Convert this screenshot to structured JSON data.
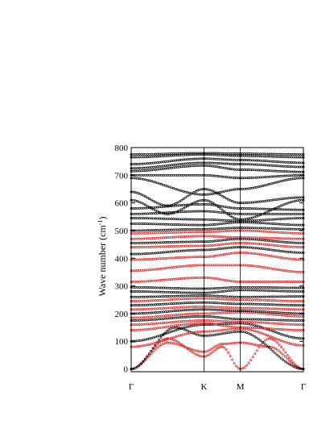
{
  "chart_data": {
    "type": "line",
    "title": "",
    "xlabel": "",
    "ylabel": "Wave number (cm",
    "ylabel_sup": "-1",
    "ylabel_close": ")",
    "ylim": [
      -10,
      800
    ],
    "yticks": [
      0,
      100,
      200,
      300,
      400,
      500,
      600,
      700,
      800
    ],
    "x_ticks": [
      {
        "label": "Γ",
        "pos": 0
      },
      {
        "label": "K",
        "pos": 1
      },
      {
        "label": "M",
        "pos": 1.5
      },
      {
        "label": "Γ",
        "pos": 2.366
      }
    ],
    "grid": false,
    "marker": "small-open-circles",
    "colors": {
      "black_branches": "#000000",
      "red_branches": "#e41a1c"
    },
    "series": [
      {
        "color": "red",
        "points": [
          [
            0,
            0
          ],
          [
            0.5,
            110
          ],
          [
            1,
            45
          ],
          [
            1.25,
            80
          ],
          [
            1.5,
            0
          ],
          [
            1.9,
            110
          ],
          [
            2.366,
            0
          ]
        ]
      },
      {
        "color": "red",
        "points": [
          [
            0,
            0
          ],
          [
            0.5,
            95
          ],
          [
            1,
            62
          ],
          [
            1.25,
            90
          ],
          [
            1.5,
            95
          ],
          [
            1.9,
            80
          ],
          [
            2.366,
            0
          ]
        ]
      },
      {
        "color": "black",
        "points": [
          [
            0,
            0
          ],
          [
            0.6,
            150
          ],
          [
            1,
            120
          ],
          [
            1.5,
            135
          ],
          [
            2.366,
            0
          ]
        ]
      },
      {
        "color": "red",
        "points": [
          [
            0,
            80
          ],
          [
            1,
            135
          ],
          [
            1.5,
            145
          ],
          [
            2.366,
            85
          ]
        ]
      },
      {
        "color": "black",
        "points": [
          [
            0,
            100
          ],
          [
            1,
            160
          ],
          [
            1.5,
            165
          ],
          [
            2.366,
            110
          ]
        ]
      },
      {
        "color": "red",
        "points": [
          [
            0,
            140
          ],
          [
            1,
            165
          ],
          [
            1.5,
            150
          ],
          [
            2.366,
            140
          ]
        ]
      },
      {
        "color": "red",
        "points": [
          [
            0,
            160
          ],
          [
            1,
            175
          ],
          [
            1.5,
            170
          ],
          [
            2.366,
            160
          ]
        ]
      },
      {
        "color": "black",
        "points": [
          [
            0,
            175
          ],
          [
            1,
            190
          ],
          [
            1.5,
            180
          ],
          [
            2.366,
            175
          ]
        ]
      },
      {
        "color": "red",
        "points": [
          [
            0,
            185
          ],
          [
            1,
            200
          ],
          [
            1.5,
            205
          ],
          [
            2.366,
            190
          ]
        ]
      },
      {
        "color": "black",
        "points": [
          [
            0,
            200
          ],
          [
            1,
            215
          ],
          [
            1.5,
            210
          ],
          [
            2.366,
            200
          ]
        ]
      },
      {
        "color": "red",
        "points": [
          [
            0,
            215
          ],
          [
            1,
            225
          ],
          [
            1.5,
            220
          ],
          [
            2.366,
            215
          ]
        ]
      },
      {
        "color": "black",
        "points": [
          [
            0,
            230
          ],
          [
            1,
            240
          ],
          [
            1.5,
            235
          ],
          [
            2.366,
            230
          ]
        ]
      },
      {
        "color": "red",
        "points": [
          [
            0,
            245
          ],
          [
            1,
            255
          ],
          [
            1.5,
            250
          ],
          [
            2.366,
            245
          ]
        ]
      },
      {
        "color": "black",
        "points": [
          [
            0,
            260
          ],
          [
            1,
            265
          ],
          [
            1.5,
            260
          ],
          [
            2.366,
            262
          ]
        ]
      },
      {
        "color": "black",
        "points": [
          [
            0,
            280
          ],
          [
            1,
            275
          ],
          [
            1.5,
            285
          ],
          [
            2.366,
            280
          ]
        ]
      },
      {
        "color": "black",
        "points": [
          [
            0,
            295
          ],
          [
            1,
            290
          ],
          [
            1.5,
            295
          ],
          [
            2.366,
            293
          ]
        ]
      },
      {
        "color": "red",
        "points": [
          [
            0,
            315
          ],
          [
            1,
            330
          ],
          [
            1.5,
            315
          ],
          [
            2.366,
            315
          ]
        ]
      },
      {
        "color": "red",
        "points": [
          [
            0,
            355
          ],
          [
            1,
            375
          ],
          [
            1.5,
            375
          ],
          [
            2.366,
            350
          ]
        ]
      },
      {
        "color": "red",
        "points": [
          [
            0,
            395
          ],
          [
            1,
            405
          ],
          [
            1.5,
            420
          ],
          [
            2.366,
            395
          ]
        ]
      },
      {
        "color": "black",
        "points": [
          [
            0,
            415
          ],
          [
            1,
            430
          ],
          [
            1.5,
            440
          ],
          [
            2.366,
            420
          ]
        ]
      },
      {
        "color": "red",
        "points": [
          [
            0,
            440
          ],
          [
            1,
            445
          ],
          [
            1.5,
            455
          ],
          [
            2.366,
            440
          ]
        ]
      },
      {
        "color": "black",
        "points": [
          [
            0,
            455
          ],
          [
            1,
            460
          ],
          [
            1.5,
            470
          ],
          [
            2.366,
            455
          ]
        ]
      },
      {
        "color": "red",
        "points": [
          [
            0,
            470
          ],
          [
            1,
            480
          ],
          [
            1.5,
            475
          ],
          [
            2.366,
            470
          ]
        ]
      },
      {
        "color": "red",
        "points": [
          [
            0,
            490
          ],
          [
            1,
            495
          ],
          [
            1.5,
            500
          ],
          [
            2.366,
            490
          ]
        ]
      },
      {
        "color": "black",
        "points": [
          [
            0,
            500
          ],
          [
            1,
            505
          ],
          [
            1.5,
            510
          ],
          [
            2.366,
            505
          ]
        ]
      },
      {
        "color": "black",
        "points": [
          [
            0,
            525
          ],
          [
            1,
            520
          ],
          [
            1.5,
            530
          ],
          [
            2.366,
            520
          ]
        ]
      },
      {
        "color": "black",
        "points": [
          [
            0,
            545
          ],
          [
            1,
            540
          ],
          [
            1.5,
            535
          ],
          [
            2.366,
            545
          ]
        ]
      },
      {
        "color": "black",
        "points": [
          [
            0,
            560
          ],
          [
            1,
            570
          ],
          [
            1.5,
            560
          ],
          [
            2.366,
            560
          ]
        ]
      },
      {
        "color": "black",
        "points": [
          [
            0,
            580
          ],
          [
            1,
            595
          ],
          [
            1.5,
            580
          ],
          [
            2.366,
            575
          ]
        ]
      },
      {
        "color": "black",
        "points": [
          [
            0,
            610
          ],
          [
            0.5,
            560
          ],
          [
            1,
            610
          ],
          [
            1.5,
            540
          ],
          [
            2.366,
            610
          ]
        ]
      },
      {
        "color": "black",
        "points": [
          [
            0,
            640
          ],
          [
            0.5,
            590
          ],
          [
            1,
            650
          ],
          [
            1.5,
            600
          ],
          [
            2.366,
            620
          ]
        ]
      },
      {
        "color": "black",
        "points": [
          [
            0,
            690
          ],
          [
            1,
            630
          ],
          [
            1.5,
            650
          ],
          [
            2.366,
            690
          ]
        ]
      },
      {
        "color": "black",
        "points": [
          [
            0,
            700
          ],
          [
            1,
            700
          ],
          [
            1.5,
            690
          ],
          [
            2.366,
            700
          ]
        ]
      },
      {
        "color": "black",
        "points": [
          [
            0,
            715
          ],
          [
            1,
            735
          ],
          [
            1.5,
            720
          ],
          [
            2.366,
            712
          ]
        ]
      },
      {
        "color": "black",
        "points": [
          [
            0,
            725
          ],
          [
            1,
            745
          ],
          [
            1.5,
            740
          ],
          [
            2.366,
            730
          ]
        ]
      },
      {
        "color": "black",
        "points": [
          [
            0,
            740
          ],
          [
            1,
            760
          ],
          [
            1.5,
            755
          ],
          [
            2.366,
            745
          ]
        ]
      },
      {
        "color": "black",
        "points": [
          [
            0,
            765
          ],
          [
            1,
            775
          ],
          [
            1.5,
            770
          ],
          [
            2.366,
            765
          ]
        ]
      },
      {
        "color": "black",
        "points": [
          [
            0,
            775
          ],
          [
            1,
            780
          ],
          [
            1.5,
            778
          ],
          [
            2.366,
            775
          ]
        ]
      }
    ]
  }
}
